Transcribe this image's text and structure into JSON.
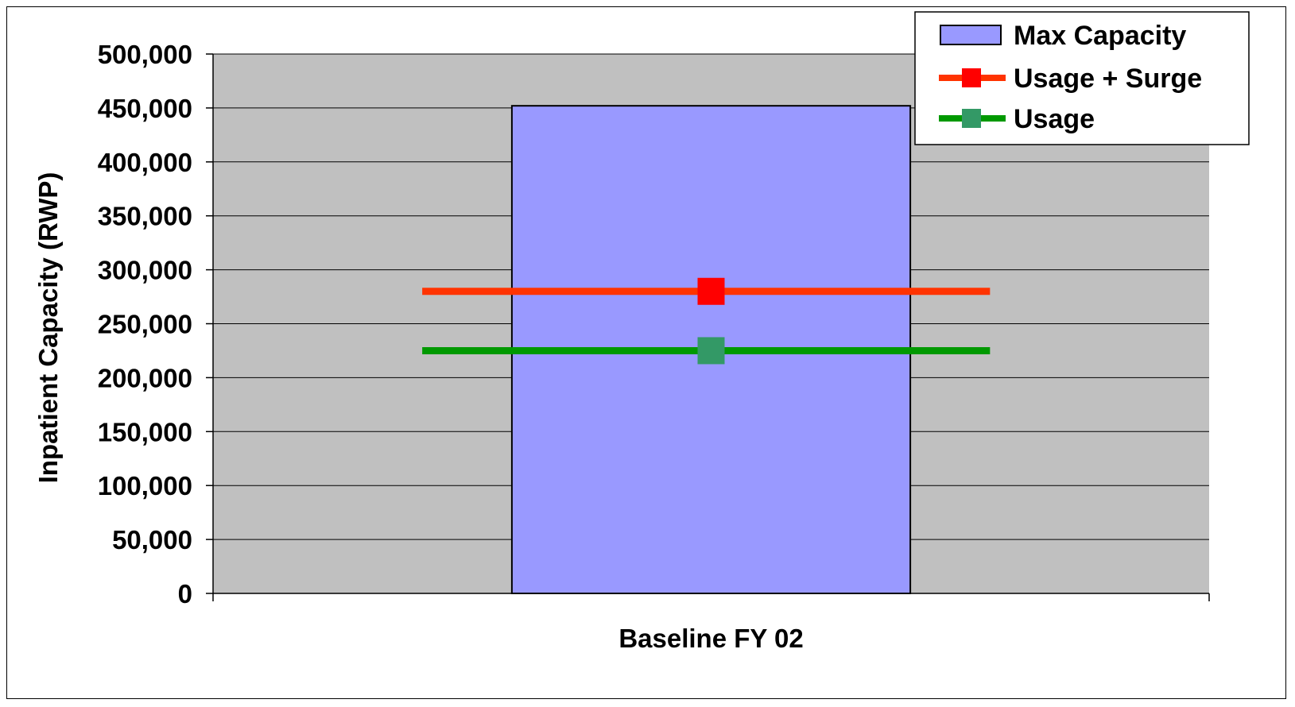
{
  "chart_data": {
    "type": "bar",
    "categories": [
      "Baseline FY 02"
    ],
    "ylabel": "Inpatient Capacity (RWP)",
    "xlabel": "",
    "ylim": [
      0,
      500000
    ],
    "y_ticks": [
      "0",
      "50,000",
      "100,000",
      "150,000",
      "200,000",
      "250,000",
      "300,000",
      "350,000",
      "400,000",
      "450,000",
      "500,000"
    ],
    "grid": true,
    "legend_position": "top-right",
    "series": [
      {
        "name": "Max Capacity",
        "kind": "bar",
        "values": [
          452000
        ],
        "color": "#9999ff"
      },
      {
        "name": "Usage + Surge",
        "kind": "line",
        "values": [
          280000
        ],
        "color": "#ff3300",
        "marker_color": "#ff0000"
      },
      {
        "name": "Usage",
        "kind": "line",
        "values": [
          225000
        ],
        "color": "#009900",
        "marker_color": "#339966"
      }
    ],
    "plot_background": "#c0c0c0"
  }
}
